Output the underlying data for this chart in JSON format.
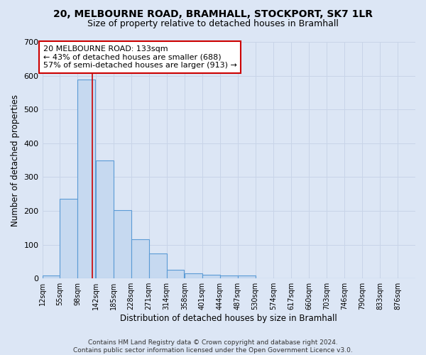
{
  "title": "20, MELBOURNE ROAD, BRAMHALL, STOCKPORT, SK7 1LR",
  "subtitle": "Size of property relative to detached houses in Bramhall",
  "xlabel": "Distribution of detached houses by size in Bramhall",
  "ylabel": "Number of detached properties",
  "bar_values": [
    8,
    235,
    588,
    350,
    203,
    117,
    74,
    25,
    15,
    10,
    8,
    8,
    0,
    0,
    0,
    0,
    0,
    0,
    0,
    0,
    0
  ],
  "bin_edges": [
    12,
    55,
    98,
    142,
    185,
    228,
    271,
    314,
    358,
    401,
    444,
    487,
    530,
    574,
    617,
    660,
    703,
    746,
    790,
    833,
    876,
    919
  ],
  "tick_labels": [
    "12sqm",
    "55sqm",
    "98sqm",
    "142sqm",
    "185sqm",
    "228sqm",
    "271sqm",
    "314sqm",
    "358sqm",
    "401sqm",
    "444sqm",
    "487sqm",
    "530sqm",
    "574sqm",
    "617sqm",
    "660sqm",
    "703sqm",
    "746sqm",
    "790sqm",
    "833sqm",
    "876sqm"
  ],
  "bar_color": "#c6d9f0",
  "bar_edge_color": "#5b9bd5",
  "grid_color": "#c8d4e8",
  "background_color": "#dce6f5",
  "property_size": 133,
  "red_line_color": "#cc0000",
  "annotation_line1": "20 MELBOURNE ROAD: 133sqm",
  "annotation_line2": "← 43% of detached houses are smaller (688)",
  "annotation_line3": "57% of semi-detached houses are larger (913) →",
  "annotation_box_color": "white",
  "annotation_box_edge_color": "#cc0000",
  "footer_text": "Contains HM Land Registry data © Crown copyright and database right 2024.\nContains public sector information licensed under the Open Government Licence v3.0.",
  "ylim": [
    0,
    700
  ],
  "yticks": [
    0,
    100,
    200,
    300,
    400,
    500,
    600,
    700
  ],
  "title_fontsize": 10,
  "subtitle_fontsize": 9,
  "xlabel_fontsize": 8.5,
  "ylabel_fontsize": 8.5,
  "tick_fontsize": 7,
  "annotation_fontsize": 8,
  "footer_fontsize": 6.5
}
